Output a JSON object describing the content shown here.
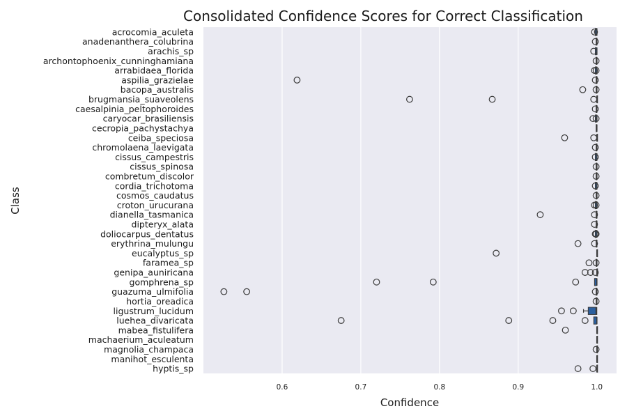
{
  "chart_data": {
    "type": "box",
    "orientation": "horizontal",
    "title": "Consolidated Confidence Scores for Correct Classification",
    "xlabel": "Confidence",
    "ylabel": "Class",
    "xticks": [
      "0.6",
      "0.7",
      "0.8",
      "0.9",
      "1.0"
    ],
    "xlim": [
      0.5,
      1.025
    ],
    "grid": true,
    "colors": {
      "background": "#eaeaf2",
      "grid": "#ffffff",
      "box": "#2b5f9e",
      "line": "#3a3a3a"
    },
    "classes": [
      {
        "name": "acrocomia_aculeta",
        "q1": 0.998,
        "median": 1.0,
        "q3": 1.0,
        "whisker_low": 0.997,
        "outliers": [
          0.997
        ]
      },
      {
        "name": "anadenanthera_colubrina",
        "q1": 0.999,
        "median": 1.0,
        "q3": 1.0,
        "whisker_low": 0.999,
        "outliers": [
          0.998
        ]
      },
      {
        "name": "arachis_sp",
        "q1": 0.998,
        "median": 1.0,
        "q3": 1.0,
        "whisker_low": 0.998,
        "outliers": [
          0.996
        ]
      },
      {
        "name": "archontophoenix_cunninghamiana",
        "q1": 0.999,
        "median": 1.0,
        "q3": 1.0,
        "whisker_low": 0.999,
        "outliers": [
          0.999
        ]
      },
      {
        "name": "arrabidaea_florida",
        "q1": 0.998,
        "median": 1.0,
        "q3": 1.0,
        "whisker_low": 0.998,
        "outliers": [
          0.997,
          0.999
        ]
      },
      {
        "name": "aspilia_grazielae",
        "q1": 0.999,
        "median": 1.0,
        "q3": 1.0,
        "whisker_low": 0.999,
        "outliers": [
          0.619,
          0.998
        ]
      },
      {
        "name": "bacopa_australis",
        "q1": 0.999,
        "median": 1.0,
        "q3": 1.0,
        "whisker_low": 0.999,
        "outliers": [
          0.982,
          0.999
        ]
      },
      {
        "name": "brugmansia_suaveolens",
        "q1": 1.0,
        "median": 1.0,
        "q3": 1.0,
        "whisker_low": 1.0,
        "outliers": [
          0.762,
          0.867,
          0.996
        ]
      },
      {
        "name": "caesalpinia_peltophoroides",
        "q1": 0.999,
        "median": 1.0,
        "q3": 1.0,
        "whisker_low": 0.999,
        "outliers": [
          0.998
        ]
      },
      {
        "name": "caryocar_brasiliensis",
        "q1": 0.998,
        "median": 1.0,
        "q3": 1.0,
        "whisker_low": 0.998,
        "outliers": [
          0.995,
          0.999
        ]
      },
      {
        "name": "cecropia_pachystachya",
        "q1": 0.999,
        "median": 1.0,
        "q3": 1.0,
        "whisker_low": 0.999,
        "outliers": []
      },
      {
        "name": "ceiba_speciosa",
        "q1": 1.0,
        "median": 1.0,
        "q3": 1.0,
        "whisker_low": 1.0,
        "outliers": [
          0.959,
          0.996
        ]
      },
      {
        "name": "chromolaena_laevigata",
        "q1": 0.999,
        "median": 1.0,
        "q3": 1.0,
        "whisker_low": 0.999,
        "outliers": [
          0.998
        ]
      },
      {
        "name": "cissus_campestris",
        "q1": 0.998,
        "median": 1.0,
        "q3": 1.0,
        "whisker_low": 0.998,
        "outliers": [
          0.998
        ]
      },
      {
        "name": "cissus_spinosa",
        "q1": 0.999,
        "median": 1.0,
        "q3": 1.0,
        "whisker_low": 0.999,
        "outliers": [
          0.999
        ]
      },
      {
        "name": "combretum_discolor",
        "q1": 0.999,
        "median": 1.0,
        "q3": 1.0,
        "whisker_low": 0.999,
        "outliers": [
          0.999
        ]
      },
      {
        "name": "cordia_trichotoma",
        "q1": 0.998,
        "median": 1.0,
        "q3": 1.0,
        "whisker_low": 0.998,
        "outliers": [
          0.998
        ]
      },
      {
        "name": "cosmos_caudatus",
        "q1": 0.999,
        "median": 1.0,
        "q3": 1.0,
        "whisker_low": 0.999,
        "outliers": [
          0.999
        ]
      },
      {
        "name": "croton_urucurana",
        "q1": 0.998,
        "median": 1.0,
        "q3": 1.0,
        "whisker_low": 0.998,
        "outliers": [
          0.997,
          0.999
        ]
      },
      {
        "name": "dianella_tasmanica",
        "q1": 0.999,
        "median": 1.0,
        "q3": 1.0,
        "whisker_low": 0.999,
        "outliers": [
          0.928,
          0.997
        ]
      },
      {
        "name": "dipteryx_alata",
        "q1": 0.999,
        "median": 1.0,
        "q3": 1.0,
        "whisker_low": 0.999,
        "outliers": [
          0.997
        ]
      },
      {
        "name": "doliocarpus_dentatus",
        "q1": 0.998,
        "median": 1.0,
        "q3": 1.0,
        "whisker_low": 0.998,
        "outliers": [
          0.998,
          0.999
        ]
      },
      {
        "name": "erythrina_mulungu",
        "q1": 0.999,
        "median": 1.0,
        "q3": 1.0,
        "whisker_low": 0.999,
        "outliers": [
          0.976,
          0.997
        ]
      },
      {
        "name": "eucalyptus_sp",
        "q1": 1.0,
        "median": 1.0,
        "q3": 1.0,
        "whisker_low": 1.0,
        "outliers": [
          0.872
        ]
      },
      {
        "name": "faramea_sp",
        "q1": 0.999,
        "median": 1.0,
        "q3": 1.0,
        "whisker_low": 0.999,
        "outliers": [
          0.99,
          0.999
        ]
      },
      {
        "name": "genipa_auniricana",
        "q1": 1.0,
        "median": 1.0,
        "q3": 1.0,
        "whisker_low": 1.0,
        "outliers": [
          0.985,
          0.992,
          0.998
        ]
      },
      {
        "name": "gomphrena_sp",
        "q1": 0.997,
        "median": 1.0,
        "q3": 1.0,
        "whisker_low": 0.997,
        "outliers": [
          0.72,
          0.792,
          0.973
        ]
      },
      {
        "name": "guazuma_ulmifolia",
        "q1": 0.999,
        "median": 1.0,
        "q3": 1.0,
        "whisker_low": 0.999,
        "outliers": [
          0.526,
          0.555,
          0.998
        ]
      },
      {
        "name": "hortia_oreadica",
        "q1": 0.999,
        "median": 1.0,
        "q3": 1.0,
        "whisker_low": 0.999,
        "outliers": [
          0.999
        ]
      },
      {
        "name": "ligustrum_lucidum",
        "q1": 0.989,
        "median": 0.999,
        "q3": 1.0,
        "whisker_low": 0.983,
        "outliers": [
          0.955,
          0.97
        ]
      },
      {
        "name": "luehea_divaricata",
        "q1": 0.996,
        "median": 1.0,
        "q3": 1.0,
        "whisker_low": 0.996,
        "outliers": [
          0.675,
          0.888,
          0.944,
          0.985
        ]
      },
      {
        "name": "mabea_fistulifera",
        "q1": 1.0,
        "median": 1.0,
        "q3": 1.0,
        "whisker_low": 1.0,
        "outliers": [
          0.96
        ]
      },
      {
        "name": "machaerium_aculeatum",
        "q1": 1.0,
        "median": 1.0,
        "q3": 1.0,
        "whisker_low": 1.0,
        "outliers": []
      },
      {
        "name": "magnolia_champaca",
        "q1": 1.0,
        "median": 1.0,
        "q3": 1.0,
        "whisker_low": 1.0,
        "outliers": [
          0.999
        ]
      },
      {
        "name": "manihot_esculenta",
        "q1": 1.0,
        "median": 1.0,
        "q3": 1.0,
        "whisker_low": 1.0,
        "outliers": []
      },
      {
        "name": "hyptis_sp",
        "q1": 1.0,
        "median": 1.0,
        "q3": 1.0,
        "whisker_low": 1.0,
        "outliers": [
          0.976,
          0.995
        ]
      }
    ]
  }
}
